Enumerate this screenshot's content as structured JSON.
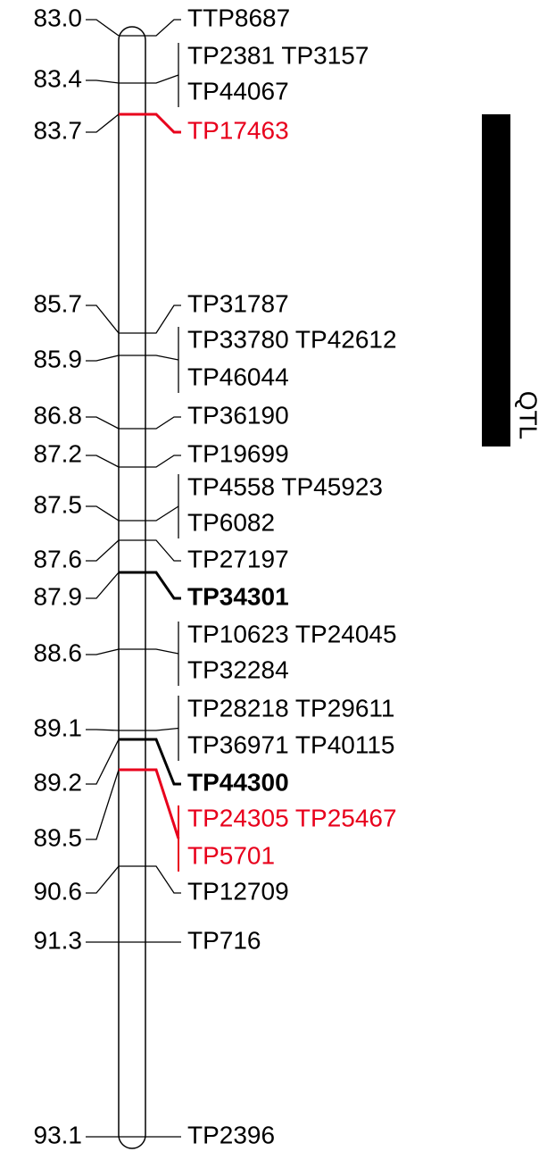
{
  "map": {
    "loci": [
      {
        "position": "83.0",
        "markers": [
          "TTP8687"
        ]
      },
      {
        "position": "83.4",
        "markers": [
          "TP2381 TP3157",
          "TP44067"
        ]
      },
      {
        "position": "83.7",
        "markers": [
          "TP17463"
        ],
        "color": "#e8001c"
      },
      {
        "position": "85.7",
        "markers": [
          "TP31787"
        ]
      },
      {
        "position": "85.9",
        "markers": [
          "TP33780 TP42612",
          "TP46044"
        ]
      },
      {
        "position": "86.8",
        "markers": [
          "TP36190"
        ]
      },
      {
        "position": "87.2",
        "markers": [
          "TP19699"
        ]
      },
      {
        "position": "87.5",
        "markers": [
          "TP4558 TP45923",
          "TP6082"
        ]
      },
      {
        "position": "87.6",
        "markers": [
          "TP27197"
        ]
      },
      {
        "position": "87.9",
        "markers": [
          "TP34301"
        ],
        "bold": true
      },
      {
        "position": "88.6",
        "markers": [
          "TP10623 TP24045",
          "TP32284"
        ]
      },
      {
        "position": "89.1",
        "markers": [
          "TP28218 TP29611",
          "TP36971 TP40115"
        ]
      },
      {
        "position": "89.2",
        "markers": [
          "TP44300"
        ],
        "bold": true
      },
      {
        "position": "89.5",
        "markers": [
          "TP24305 TP25467",
          "TP5701"
        ],
        "color": "#e8001c"
      },
      {
        "position": "90.6",
        "markers": [
          "TP12709"
        ]
      },
      {
        "position": "91.3",
        "markers": [
          "TP716"
        ]
      },
      {
        "position": "93.1",
        "markers": [
          "TP2396"
        ]
      }
    ],
    "qtl_label": "QTL"
  }
}
